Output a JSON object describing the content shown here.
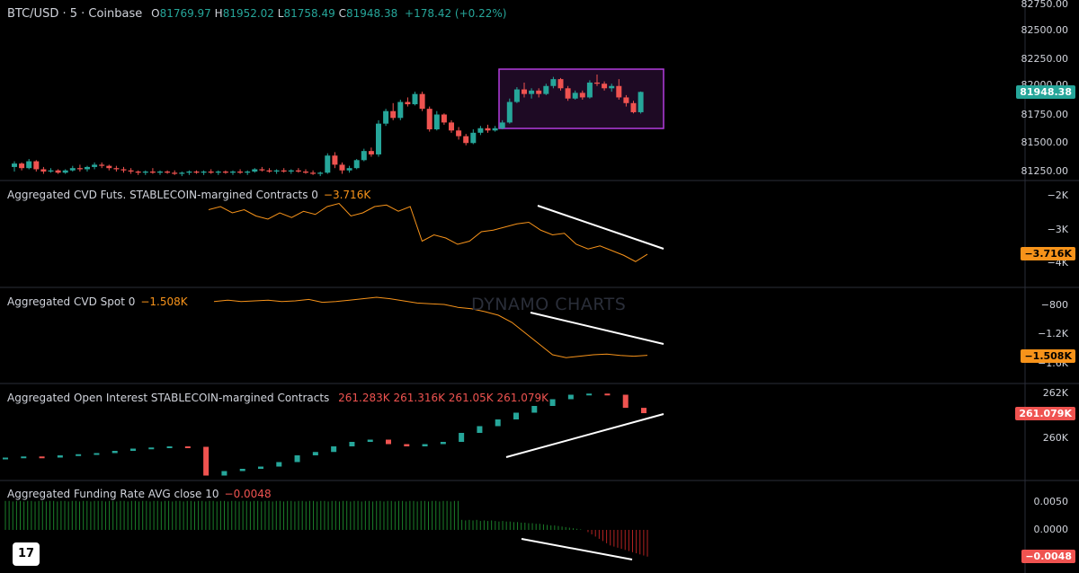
{
  "header": {
    "symbol": "BTC/USD · 5 · Coinbase",
    "open_label": "O",
    "open": "81769.97",
    "high_label": "H",
    "high": "81952.02",
    "low_label": "L",
    "low": "81758.49",
    "close_label": "C",
    "close": "81948.38",
    "change": "+178.42 (+0.22%)"
  },
  "colors": {
    "up": "#26a69a",
    "down": "#ef5350",
    "orange": "#f7931a",
    "white": "#ffffff",
    "highlight": "#b23cde",
    "highlight_fill": "#1e0a24",
    "grid": "#2a2e39"
  },
  "watermark": "DYNAMO CHARTS",
  "logo_icon": "tradingview-logo-icon",
  "logo_text": "17",
  "panes": {
    "price": {
      "axis_ticks": [
        "82750.00",
        "82500.00",
        "82250.00",
        "82000.00",
        "81750.00",
        "81500.00",
        "81250.00"
      ],
      "last_value": "81948.38"
    },
    "cvd_futs": {
      "title": "Aggregated CVD Futs. STABLECOIN-margined Contracts 0",
      "value": "−3.716K",
      "axis_ticks": [
        "−2K",
        "−3K",
        "−4K"
      ],
      "last_value": "−3.716K"
    },
    "cvd_spot": {
      "title": "Aggregated CVD Spot 0",
      "value": "−1.508K",
      "axis_ticks": [
        "−800",
        "−1.2K",
        "−1.6K"
      ],
      "last_value": "−1.508K"
    },
    "oi": {
      "title": "Aggregated Open Interest STABLECOIN-margined Contracts",
      "values": [
        "261.283K",
        "261.316K",
        "261.05K",
        "261.079K"
      ],
      "axis_ticks": [
        "262K",
        "260K"
      ],
      "last_value": "261.079K"
    },
    "funding": {
      "title": "Aggregated Funding Rate AVG close 10",
      "value": "−0.0048",
      "axis_ticks": [
        "0.0050",
        "0.0000"
      ],
      "last_value": "−0.0048"
    }
  },
  "chart_data": {
    "type": "candlestick",
    "price_ohlc": [
      [
        81290,
        81340,
        81250,
        81320
      ],
      [
        81320,
        81330,
        81260,
        81280
      ],
      [
        81280,
        81360,
        81270,
        81340
      ],
      [
        81340,
        81350,
        81250,
        81270
      ],
      [
        81270,
        81290,
        81230,
        81250
      ],
      [
        81250,
        81280,
        81240,
        81260
      ],
      [
        81260,
        81270,
        81230,
        81240
      ],
      [
        81240,
        81270,
        81230,
        81260
      ],
      [
        81260,
        81300,
        81250,
        81280
      ],
      [
        81280,
        81310,
        81250,
        81270
      ],
      [
        81270,
        81300,
        81250,
        81290
      ],
      [
        81290,
        81330,
        81270,
        81310
      ],
      [
        81310,
        81330,
        81280,
        81300
      ],
      [
        81300,
        81310,
        81260,
        81280
      ],
      [
        81280,
        81300,
        81250,
        81270
      ],
      [
        81270,
        81290,
        81240,
        81260
      ],
      [
        81260,
        81280,
        81230,
        81250
      ],
      [
        81250,
        81260,
        81220,
        81240
      ],
      [
        81240,
        81260,
        81220,
        81250
      ],
      [
        81250,
        81280,
        81230,
        81240
      ],
      [
        81240,
        81260,
        81220,
        81250
      ],
      [
        81250,
        81260,
        81230,
        81240
      ],
      [
        81240,
        81260,
        81220,
        81230
      ],
      [
        81230,
        81250,
        81210,
        81240
      ],
      [
        81240,
        81260,
        81220,
        81250
      ],
      [
        81250,
        81260,
        81230,
        81240
      ],
      [
        81240,
        81260,
        81220,
        81250
      ],
      [
        81250,
        81270,
        81230,
        81240
      ],
      [
        81240,
        81260,
        81220,
        81250
      ],
      [
        81250,
        81260,
        81230,
        81240
      ],
      [
        81240,
        81260,
        81220,
        81250
      ],
      [
        81250,
        81270,
        81230,
        81240
      ],
      [
        81240,
        81260,
        81220,
        81250
      ],
      [
        81250,
        81280,
        81240,
        81270
      ],
      [
        81270,
        81290,
        81250,
        81260
      ],
      [
        81260,
        81280,
        81240,
        81250
      ],
      [
        81250,
        81270,
        81230,
        81260
      ],
      [
        81260,
        81280,
        81240,
        81250
      ],
      [
        81250,
        81270,
        81230,
        81260
      ],
      [
        81260,
        81280,
        81240,
        81250
      ],
      [
        81250,
        81270,
        81230,
        81240
      ],
      [
        81240,
        81260,
        81220,
        81230
      ],
      [
        81230,
        81250,
        81210,
        81240
      ],
      [
        81240,
        81410,
        81230,
        81390
      ],
      [
        81390,
        81420,
        81280,
        81310
      ],
      [
        81310,
        81330,
        81230,
        81260
      ],
      [
        81260,
        81300,
        81240,
        81280
      ],
      [
        81280,
        81360,
        81270,
        81350
      ],
      [
        81350,
        81450,
        81340,
        81430
      ],
      [
        81430,
        81460,
        81380,
        81400
      ],
      [
        81400,
        81700,
        81380,
        81670
      ],
      [
        81670,
        81800,
        81650,
        81780
      ],
      [
        81780,
        81850,
        81700,
        81720
      ],
      [
        81720,
        81880,
        81700,
        81860
      ],
      [
        81860,
        81900,
        81820,
        81840
      ],
      [
        81840,
        81950,
        81830,
        81930
      ],
      [
        81930,
        81950,
        81780,
        81800
      ],
      [
        81800,
        81820,
        81600,
        81620
      ],
      [
        81620,
        81780,
        81610,
        81750
      ],
      [
        81750,
        81760,
        81660,
        81680
      ],
      [
        81680,
        81700,
        81590,
        81610
      ],
      [
        81610,
        81640,
        81530,
        81560
      ],
      [
        81560,
        81580,
        81480,
        81500
      ],
      [
        81500,
        81620,
        81490,
        81590
      ],
      [
        81590,
        81650,
        81570,
        81630
      ],
      [
        81630,
        81660,
        81590,
        81610
      ],
      [
        81610,
        81650,
        81600,
        81630
      ],
      [
        81630,
        81700,
        81620,
        81680
      ],
      [
        81680,
        81890,
        81670,
        81860
      ],
      [
        81860,
        81990,
        81850,
        81970
      ],
      [
        81970,
        82030,
        81900,
        81930
      ],
      [
        81930,
        81980,
        81890,
        81960
      ],
      [
        81960,
        81980,
        81900,
        81930
      ],
      [
        81930,
        82020,
        81920,
        82000
      ],
      [
        82000,
        82080,
        81980,
        82060
      ],
      [
        82060,
        82070,
        81960,
        81980
      ],
      [
        81980,
        82000,
        81870,
        81890
      ],
      [
        81890,
        81960,
        81880,
        81940
      ],
      [
        81940,
        81960,
        81880,
        81900
      ],
      [
        81900,
        82050,
        81890,
        82030
      ],
      [
        82030,
        82100,
        82000,
        82020
      ],
      [
        82020,
        82040,
        81960,
        81980
      ],
      [
        81980,
        82020,
        81950,
        82000
      ],
      [
        82000,
        82060,
        81880,
        81900
      ],
      [
        81900,
        81920,
        81820,
        81850
      ],
      [
        81850,
        81870,
        81760,
        81770
      ],
      [
        81770,
        81952,
        81758,
        81948
      ]
    ],
    "cvd_futs": [
      -2300,
      -2200,
      -2400,
      -2300,
      -2500,
      -2600,
      -2400,
      -2550,
      -2350,
      -2450,
      -2200,
      -2100,
      -2500,
      -2400,
      -2200,
      -2150,
      -2350,
      -2200,
      -3300,
      -3100,
      -3200,
      -3400,
      -3300,
      -3000,
      -2950,
      -2850,
      -2750,
      -2700,
      -2950,
      -3100,
      -3050,
      -3400,
      -3550,
      -3450,
      -3600,
      -3750,
      -3950,
      -3716
    ],
    "cvd_spot": [
      -760,
      -740,
      -760,
      -750,
      -740,
      -760,
      -750,
      -730,
      -770,
      -760,
      -740,
      -720,
      -700,
      -720,
      -750,
      -780,
      -790,
      -800,
      -840,
      -860,
      -900,
      -950,
      -1050,
      -1200,
      -1350,
      -1500,
      -1540,
      -1520,
      -1500,
      -1490,
      -1510,
      -1520,
      -1508
    ],
    "oi": [
      259100,
      259150,
      259100,
      259200,
      259250,
      259300,
      259400,
      259500,
      259550,
      259600,
      259580,
      258300,
      258500,
      258600,
      258700,
      258900,
      259200,
      259350,
      259600,
      259800,
      259900,
      259700,
      259600,
      259700,
      259800,
      260200,
      260500,
      260800,
      261100,
      261400,
      261700,
      261900,
      261950,
      261900,
      261316,
      261079
    ],
    "funding": [
      0.0052,
      0.0052,
      0.0051,
      0.0052,
      0.0052,
      0.0051,
      0.0052,
      0.0052,
      0.0051,
      0.0052,
      0.0052,
      0.0051,
      0.0052,
      0.0052,
      0.0051,
      0.0052,
      0.0052,
      0.0051,
      0.0052,
      0.0052,
      0.0051,
      0.0052,
      0.0052,
      0.0051,
      0.0052,
      0.0052,
      0.0052,
      0.0051,
      0.0052,
      0.0052,
      0.0051,
      0.0052,
      0.0052,
      0.0051,
      0.0052,
      0.0052,
      0.0051,
      0.0052,
      0.0052,
      0.0051,
      0.0052,
      0.0052,
      0.0051,
      0.0052,
      0.0052,
      0.0051,
      0.0052,
      0.0052,
      0.0051,
      0.0052,
      0.0052,
      0.0051,
      0.0052,
      0.0052,
      0.0051,
      0.0052,
      0.0052,
      0.0051,
      0.0052,
      0.0052,
      0.0051,
      0.0052,
      0.0052,
      0.0051,
      0.0052,
      0.0052,
      0.0051,
      0.0052,
      0.0052,
      0.0051,
      0.0052,
      0.0052,
      0.0051,
      0.0052,
      0.0052,
      0.0051,
      0.0052,
      0.0052,
      0.0051,
      0.0052,
      0.0052,
      0.0051,
      0.0052,
      0.0052,
      0.0051,
      0.0052,
      0.0052,
      0.0051,
      0.0052,
      0.0052,
      0.0051,
      0.0052,
      0.0052,
      0.0051,
      0.0052,
      0.0052,
      0.0051,
      0.0052,
      0.0052,
      0.0051,
      0.0052,
      0.0052,
      0.0051,
      0.0052,
      0.0052,
      0.0051,
      0.0052,
      0.0052,
      0.0051,
      0.0052,
      0.0052,
      0.0051,
      0.0052,
      0.0052,
      0.0051,
      0.0052,
      0.0052,
      0.0051,
      0.0052,
      0.0052,
      0.0051,
      0.0052,
      0.0052,
      0.0018,
      0.0017,
      0.0018,
      0.0017,
      0.0018,
      0.0016,
      0.0017,
      0.0016,
      0.0017,
      0.0016,
      0.0015,
      0.0016,
      0.0015,
      0.0015,
      0.0014,
      0.0014,
      0.0013,
      0.0013,
      0.0012,
      0.0012,
      0.0011,
      0.0011,
      0.001,
      0.0009,
      0.0008,
      0.0008,
      0.0007,
      0.0006,
      0.0005,
      0.0004,
      0.0003,
      0.0002,
      0.0001,
      0.0,
      -0.0004,
      -0.0008,
      -0.0012,
      -0.0016,
      -0.002,
      -0.0024,
      -0.0028,
      -0.003,
      -0.0032,
      -0.0034,
      -0.0036,
      -0.0038,
      -0.004,
      -0.0042,
      -0.0044,
      -0.0046,
      -0.0048
    ]
  }
}
